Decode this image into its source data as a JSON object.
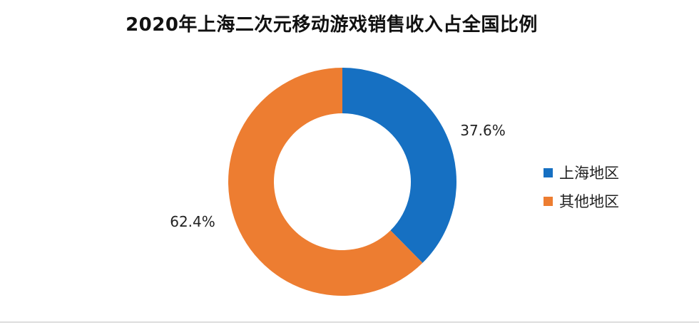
{
  "chart_data": {
    "type": "pie",
    "variant": "donut",
    "title": "2020年上海二次元移动游戏销售收入占全国比例",
    "categories": [
      "上海地区",
      "其他地区"
    ],
    "values": [
      37.6,
      62.4
    ],
    "value_labels": [
      "37.6%",
      "62.4%"
    ],
    "unit": "%",
    "colors": [
      "#1670C2",
      "#ED7D31"
    ],
    "legend_position": "right"
  }
}
